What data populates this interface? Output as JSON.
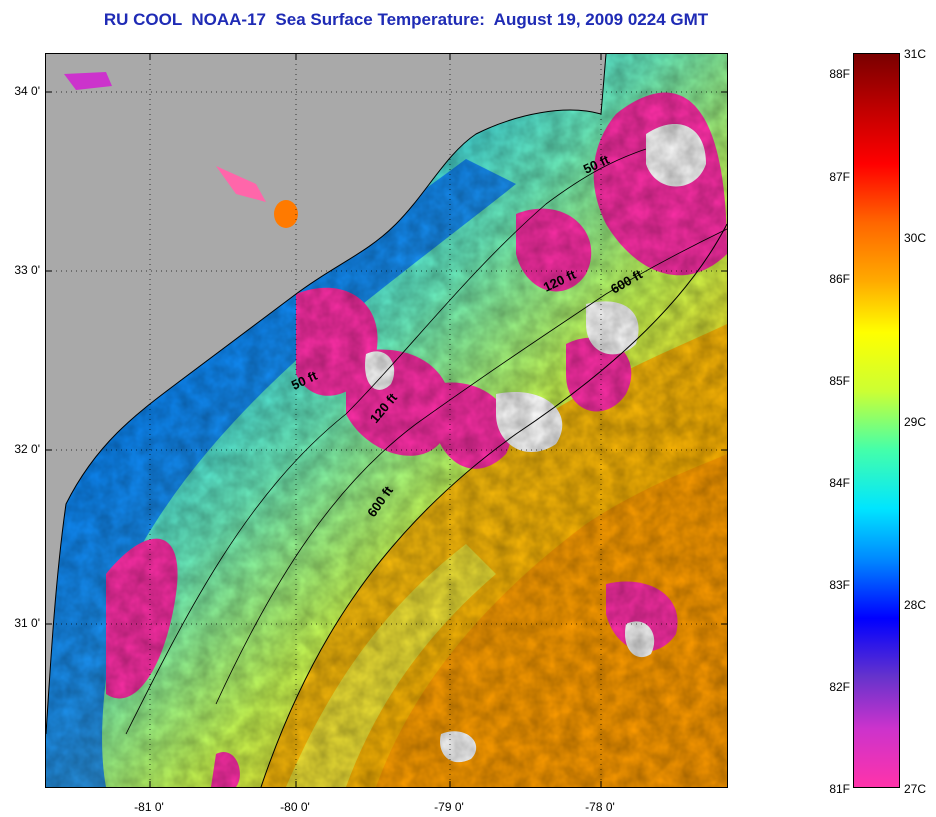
{
  "title": "RU COOL  NOAA-17  Sea Surface Temperature:  August 19, 2009 0224 GMT",
  "lat_ticks": [
    {
      "label": "34 0'",
      "cls": "t34"
    },
    {
      "label": "33 0'",
      "cls": "t33"
    },
    {
      "label": "32 0'",
      "cls": "t32"
    },
    {
      "label": "31 0'",
      "cls": "t31"
    }
  ],
  "lon_ticks": [
    {
      "label": "-81 0'"
    },
    {
      "label": "-80 0'"
    },
    {
      "label": "-79 0'"
    },
    {
      "label": "-78 0'"
    }
  ],
  "depth_labels": {
    "a": "50 ft",
    "b": "120 ft",
    "c": "600 ft",
    "d": "50 ft",
    "e": "120 ft",
    "f": "600 ft"
  },
  "colorbar": {
    "fahrenheit": [
      "88F",
      "87F",
      "86F",
      "85F",
      "84F",
      "83F",
      "82F",
      "81F"
    ],
    "celsius": [
      "31C",
      "30C",
      "29C",
      "28C",
      "27C"
    ],
    "colors": [
      "#ff33aa",
      "#cc33cc",
      "#6633cc",
      "#0000ff",
      "#0088ff",
      "#00e5ff",
      "#44ffaa",
      "#ccff33",
      "#ffff00",
      "#ffaa00",
      "#ff6600",
      "#ff0000",
      "#c40000",
      "#7a0000"
    ]
  }
}
